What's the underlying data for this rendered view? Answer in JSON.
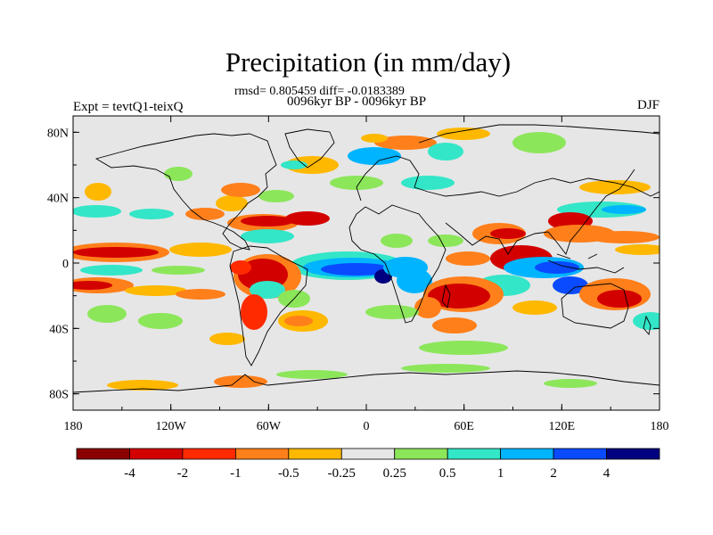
{
  "figure": {
    "title": "Precipitation (in mm/day)",
    "stats": "rmsd= 0.805459 diff= -0.0183389",
    "period": "0096kyr BP - 0096kyr BP",
    "experiment": "Expt = tevtQ1-teixQ",
    "season": "DJF"
  },
  "axes": {
    "y_ticks": [
      {
        "label": "80N",
        "lat": 80
      },
      {
        "label": "40N",
        "lat": 40
      },
      {
        "label": "0",
        "lat": 0
      },
      {
        "label": "40S",
        "lat": -40
      },
      {
        "label": "80S",
        "lat": -80
      }
    ],
    "x_ticks": [
      {
        "label": "180",
        "lon": -180
      },
      {
        "label": "120W",
        "lon": -120
      },
      {
        "label": "60W",
        "lon": -60
      },
      {
        "label": "0",
        "lon": 0
      },
      {
        "label": "60E",
        "lon": 60
      },
      {
        "label": "120E",
        "lon": 120
      },
      {
        "label": "180",
        "lon": 180
      }
    ],
    "lon_range": [
      -180,
      180
    ],
    "lat_range": [
      -90,
      90
    ]
  },
  "colorbar": {
    "colors": [
      "#8b0000",
      "#d30000",
      "#ff2a00",
      "#ff7f1a",
      "#ffb800",
      "#e6e6e6",
      "#8ce65a",
      "#33e6c8",
      "#00b4ff",
      "#0a4bff",
      "#000080"
    ],
    "labels": [
      "-4",
      "-2",
      "-1",
      "-0.5",
      "-0.25",
      "0.25",
      "0.5",
      "1",
      "2",
      "4"
    ]
  },
  "map": {
    "background": "#e6e6e6",
    "coast_color": "#000000"
  }
}
